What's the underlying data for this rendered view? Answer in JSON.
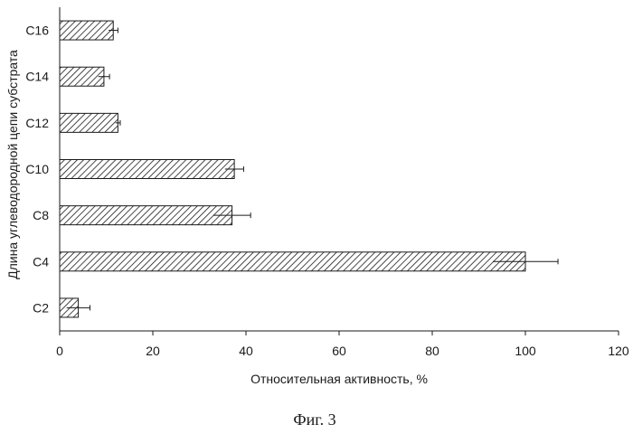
{
  "chart_data": {
    "type": "bar",
    "orientation": "horizontal",
    "categories": [
      "C2",
      "C4",
      "C8",
      "C10",
      "C12",
      "C14",
      "C16"
    ],
    "values": [
      4,
      100,
      37,
      37.5,
      12.5,
      9.5,
      11.5
    ],
    "error": [
      2.5,
      7,
      4,
      2,
      0.5,
      1.2,
      1
    ],
    "xlabel": "Относительная активность, %",
    "ylabel": "Длина углеводородной цепи субстрата",
    "xlim": [
      0,
      120
    ],
    "xticks": [
      0,
      20,
      40,
      60,
      80,
      100,
      120
    ],
    "grid": false,
    "bar_fill": "diagonal-hatch",
    "bar_color": "#1a1a1a"
  },
  "caption": "Фиг. 3"
}
